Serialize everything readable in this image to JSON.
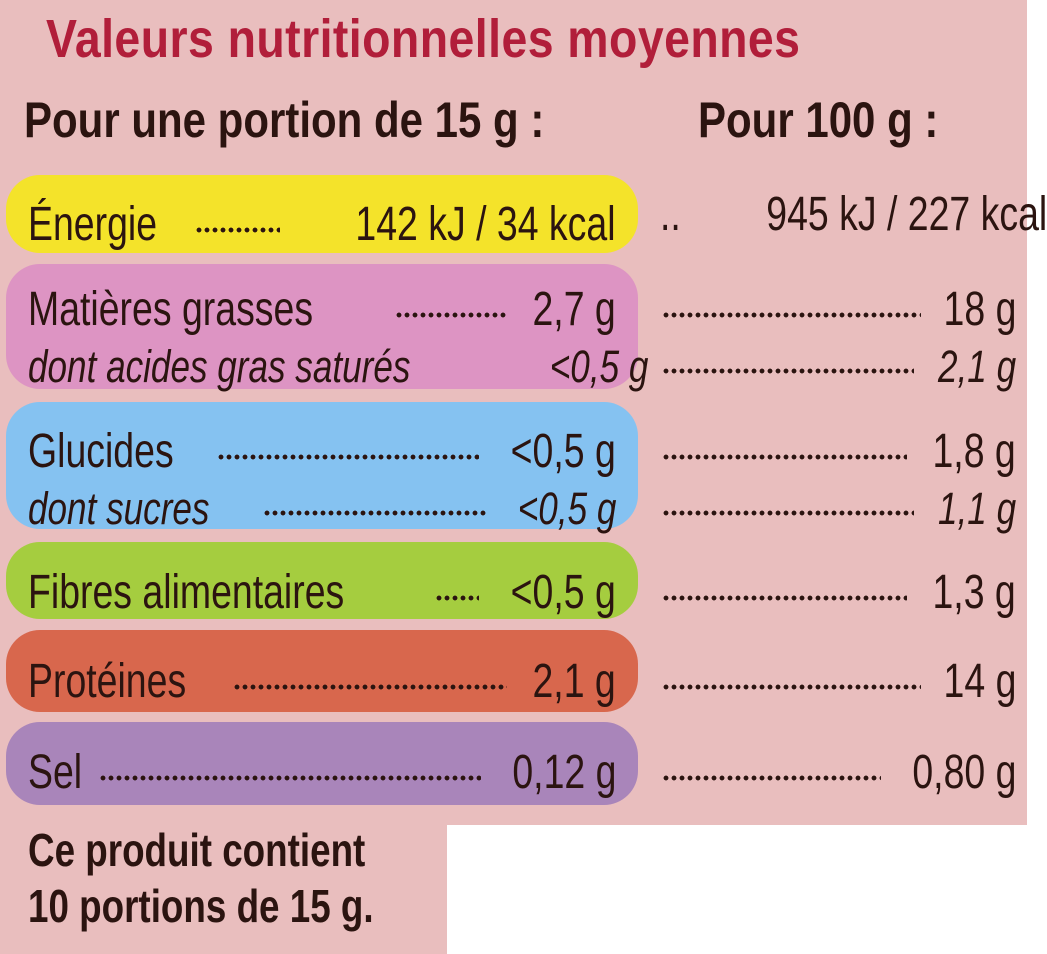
{
  "title": "Valeurs nutritionnelles moyennes",
  "header": {
    "portion": "Pour une portion de 15 g :",
    "per100": "Pour 100 g :"
  },
  "rows": {
    "energy": {
      "label": "Énergie",
      "portion": "142 kJ / 34 kcal",
      "per100_prefix": "..",
      "per100": "945 kJ / 227 kcal"
    },
    "fat": {
      "label": "Matières grasses",
      "portion": "2,7 g",
      "per100": "18 g"
    },
    "satfat": {
      "label": "dont acides gras saturés",
      "portion": "<0,5 g",
      "per100": "2,1 g"
    },
    "carbs": {
      "label": "Glucides",
      "portion": "<0,5 g",
      "per100": "1,8 g"
    },
    "sugars": {
      "label": "dont sucres",
      "portion": "<0,5 g",
      "per100": "1,1 g"
    },
    "fibre": {
      "label": "Fibres alimentaires",
      "portion": "<0,5 g",
      "per100": "1,3 g"
    },
    "protein": {
      "label": "Protéines",
      "portion": "2,1 g",
      "per100": "14 g"
    },
    "salt": {
      "label": "Sel",
      "portion": "0,12 g",
      "per100": "0,80 g"
    }
  },
  "footer": {
    "line1": "Ce produit contient",
    "line2": "10 portions de 15 g."
  },
  "colors": {
    "background": "#e9bebe",
    "title": "#b11e3a",
    "text": "#2b1410",
    "energy": "#f4e32a",
    "fat": "#dd94c3",
    "carbs": "#85c2f1",
    "fibre": "#a5cd3f",
    "protein": "#d8674d",
    "salt": "#a985ba"
  }
}
